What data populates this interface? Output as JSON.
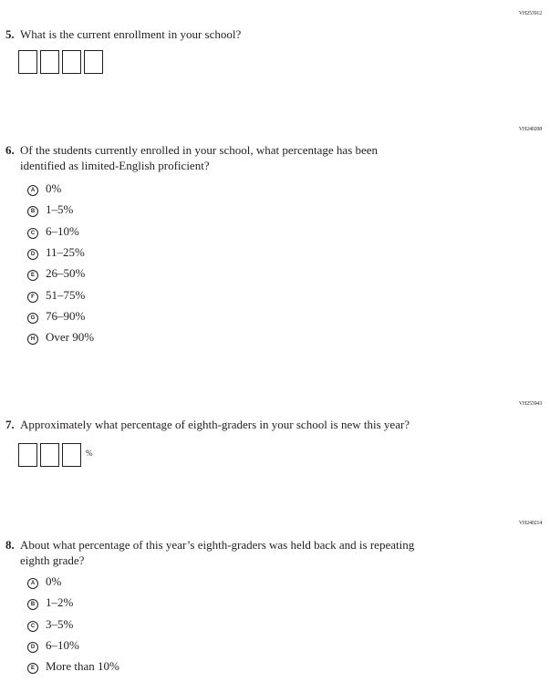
{
  "questions": [
    {
      "id": "VH253912",
      "number": "5.",
      "text": "What is the current enrollment in your school?",
      "boxes": 4
    },
    {
      "id": "VH240208",
      "number": "6.",
      "text": "Of the students currently enrolled in your school, what percentage has been",
      "text2": "identified as limited-English proficient?",
      "options": [
        {
          "letter": "A",
          "label": "0%"
        },
        {
          "letter": "B",
          "label": "1–5%"
        },
        {
          "letter": "C",
          "label": "6–10%"
        },
        {
          "letter": "D",
          "label": "11–25%"
        },
        {
          "letter": "E",
          "label": "26–50%"
        },
        {
          "letter": "F",
          "label": "51–75%"
        },
        {
          "letter": "G",
          "label": "76–90%"
        },
        {
          "letter": "H",
          "label": "Over 90%"
        }
      ]
    },
    {
      "id": "VH253943",
      "number": "7.",
      "text": "Approximately what percentage of eighth-graders in your school is new this year?",
      "boxes": 3,
      "unit": "%"
    },
    {
      "id": "VH240214",
      "number": "8.",
      "text": "About what percentage of this year’s eighth-graders was held back and is repeating",
      "text2": "eighth grade?",
      "options": [
        {
          "letter": "A",
          "label": "0%"
        },
        {
          "letter": "B",
          "label": "1–2%"
        },
        {
          "letter": "C",
          "label": "3–5%"
        },
        {
          "letter": "D",
          "label": "6–10%"
        },
        {
          "letter": "E",
          "label": "More than 10%"
        }
      ]
    }
  ]
}
